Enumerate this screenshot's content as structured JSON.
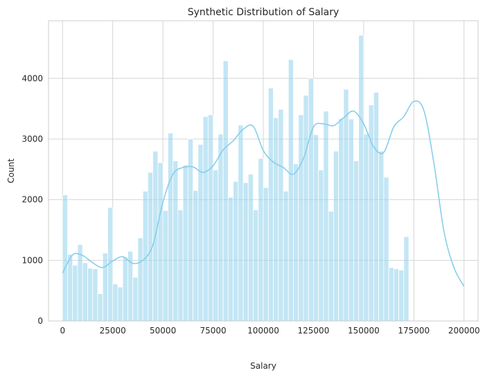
{
  "chart_data": {
    "type": "bar",
    "title": "Synthetic Distribution of Salary",
    "xlabel": "Salary",
    "ylabel": "Count",
    "xlim": [
      -7000,
      207000
    ],
    "ylim": [
      0,
      4950
    ],
    "xticks": [
      0,
      25000,
      50000,
      75000,
      100000,
      125000,
      150000,
      175000,
      200000
    ],
    "yticks": [
      0,
      1000,
      2000,
      3000,
      4000
    ],
    "grid": true,
    "bar_color": "#87CEEB",
    "kde_color": "#87CEEB",
    "bin_start": 0,
    "bin_width": 2500,
    "counts": [
      2080,
      1100,
      920,
      1260,
      960,
      870,
      860,
      450,
      1120,
      1870,
      610,
      560,
      1050,
      1150,
      720,
      1370,
      2140,
      2450,
      2800,
      2610,
      1820,
      3100,
      2640,
      1830,
      2570,
      3000,
      2150,
      2910,
      3370,
      3400,
      2490,
      3080,
      4290,
      2040,
      2300,
      3230,
      2280,
      2420,
      1830,
      2680,
      2200,
      3840,
      3350,
      3490,
      2140,
      4310,
      2590,
      3400,
      3720,
      4000,
      3070,
      2490,
      3460,
      1810,
      2800,
      3340,
      3820,
      3330,
      2640,
      4710,
      3080,
      3560,
      3770,
      2800,
      2370,
      880,
      860,
      840,
      1390
    ],
    "kde": {
      "x": [
        0,
        5000,
        10000,
        15000,
        20000,
        25000,
        30000,
        35000,
        40000,
        45000,
        50000,
        55000,
        60000,
        65000,
        70000,
        75000,
        80000,
        85000,
        90000,
        95000,
        100000,
        105000,
        110000,
        115000,
        120000,
        125000,
        130000,
        135000,
        140000,
        145000,
        150000,
        155000,
        160000,
        165000,
        170000,
        175000,
        180000,
        185000,
        190000,
        195000,
        200000
      ],
      "y": [
        790,
        1090,
        1080,
        960,
        880,
        990,
        1060,
        950,
        1000,
        1250,
        1960,
        2420,
        2530,
        2540,
        2450,
        2560,
        2820,
        2970,
        3160,
        3210,
        2810,
        2620,
        2530,
        2420,
        2680,
        3200,
        3250,
        3220,
        3350,
        3460,
        3250,
        2870,
        2780,
        3200,
        3370,
        3620,
        3470,
        2600,
        1480,
        880,
        570
      ]
    }
  }
}
